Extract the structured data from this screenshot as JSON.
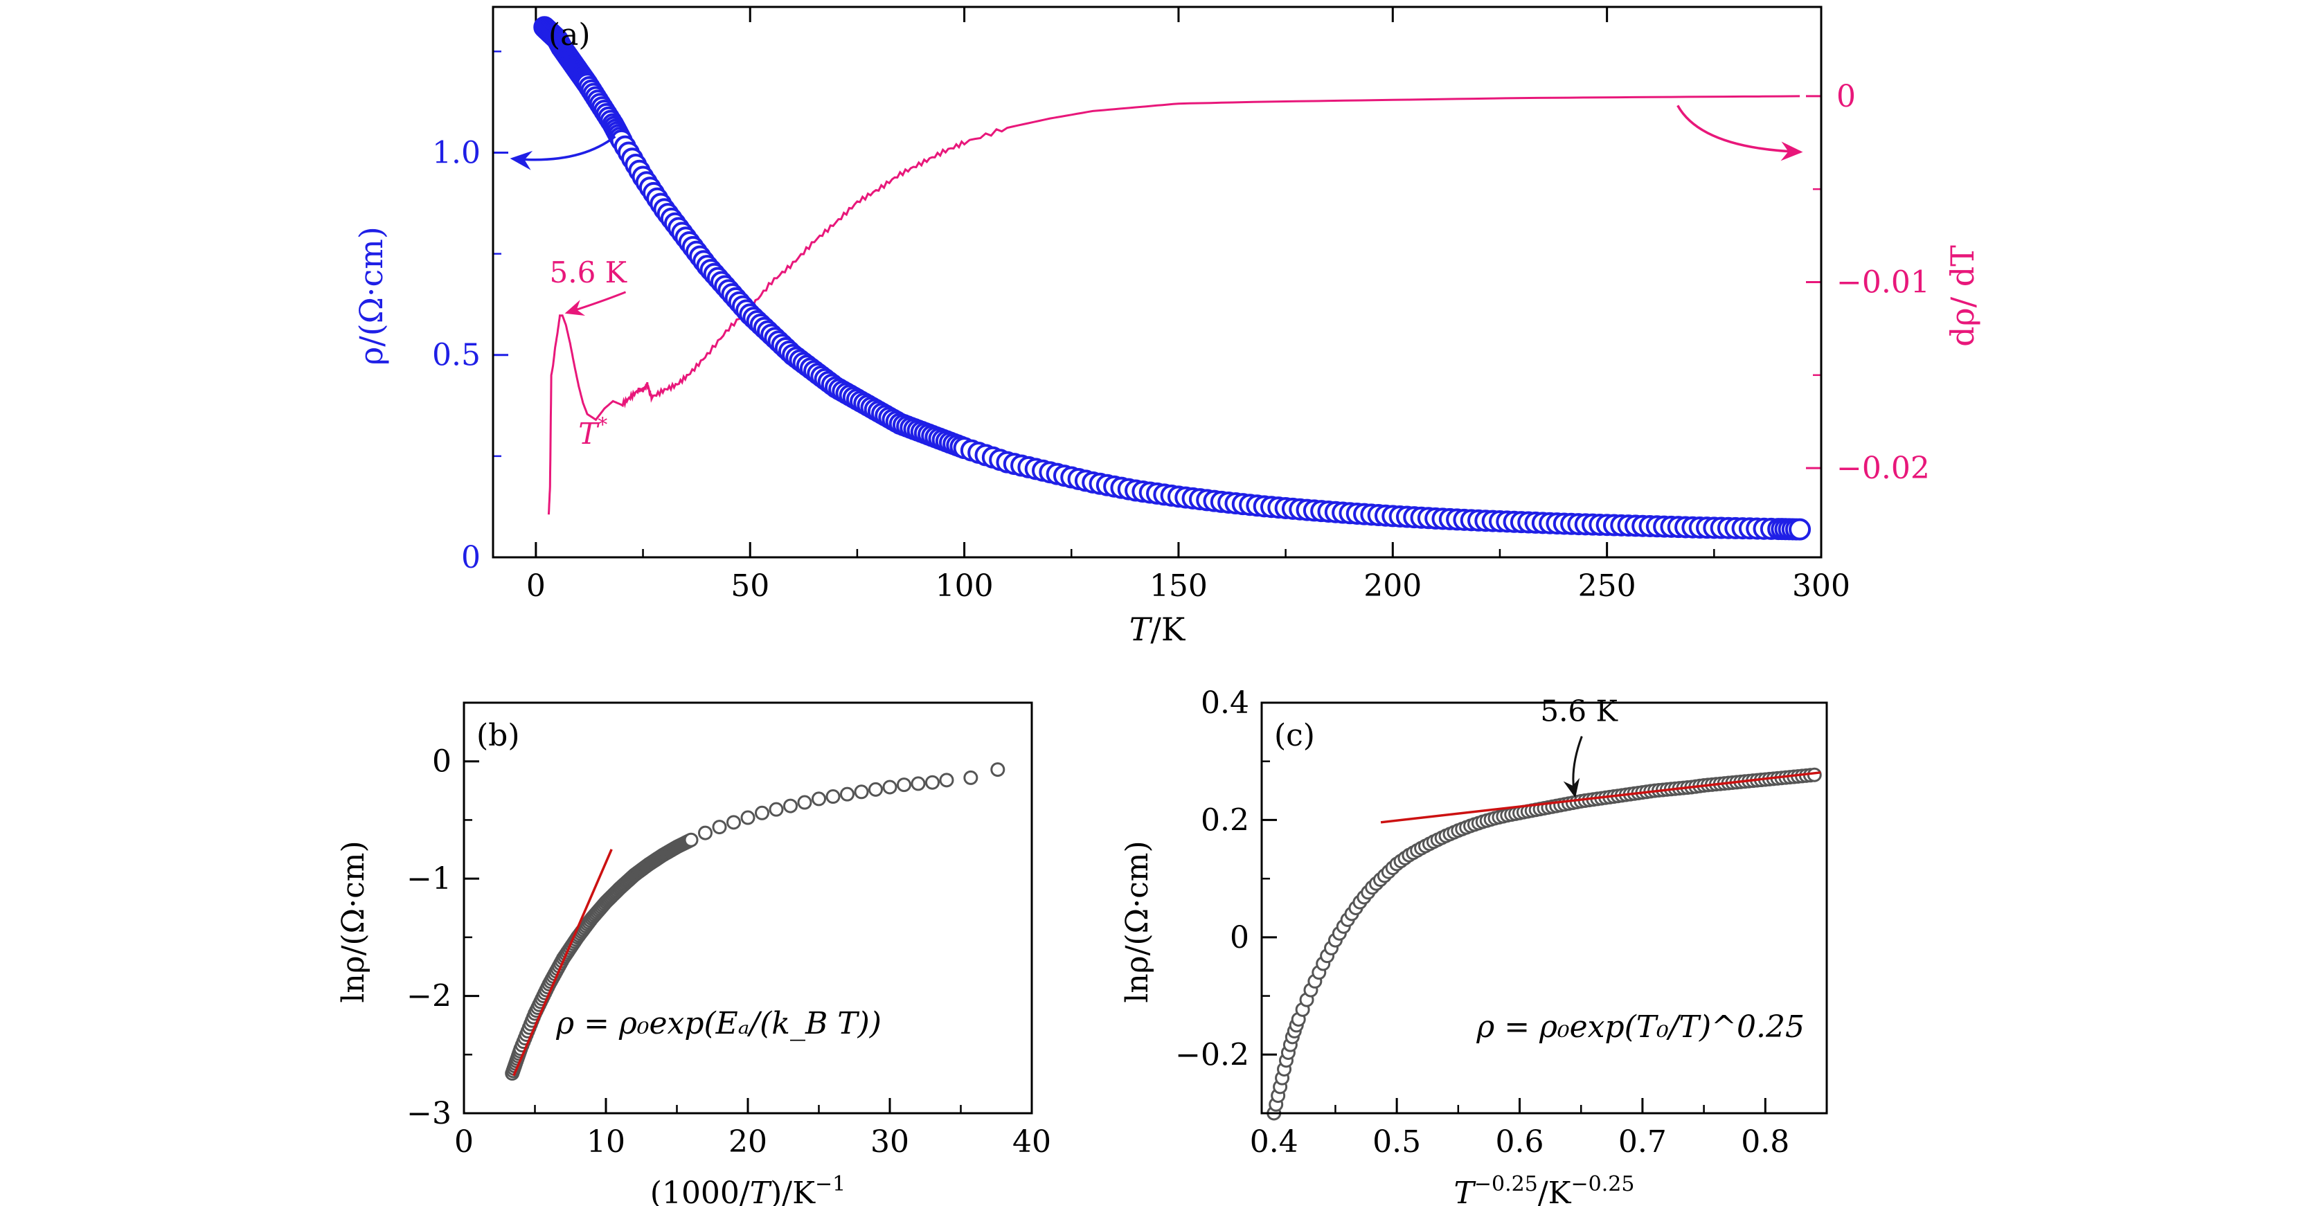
{
  "chart_data": [
    {
      "id": "a",
      "type": "scatter",
      "panel_label": "(a)",
      "xlabel_italic": "T",
      "xlabel_rest": "/K",
      "ylabel": "ρ/(Ω·cm)",
      "y2label": "dρ/ dT",
      "xlim": [
        -10,
        300
      ],
      "ylim": [
        0,
        1.36
      ],
      "y2lim": [
        -0.0248,
        0.0048
      ],
      "xticks": [
        0,
        50,
        100,
        150,
        200,
        250,
        300
      ],
      "yticks": [
        0,
        0.5,
        1.0
      ],
      "ytick_labels": [
        "0",
        "0.5",
        "1.0"
      ],
      "y2ticks": [
        0,
        -0.01,
        -0.02
      ],
      "y2tick_labels": [
        "0",
        "−0.01",
        "−0.02"
      ],
      "left_color": "#1f1fe6",
      "right_color": "#e8177a",
      "series": [
        {
          "name": "ρ (left axis)",
          "axis": "left",
          "marker": "open-circle",
          "color": "#1f1fe6",
          "x": [
            2,
            3,
            4,
            5,
            6,
            8,
            10,
            12,
            15,
            18,
            20,
            25,
            30,
            35,
            40,
            45,
            50,
            55,
            60,
            65,
            70,
            75,
            80,
            85,
            90,
            95,
            100,
            110,
            120,
            130,
            140,
            150,
            160,
            170,
            180,
            190,
            200,
            210,
            220,
            230,
            240,
            250,
            260,
            270,
            280,
            290,
            295
          ],
          "y": [
            1.31,
            1.3,
            1.29,
            1.28,
            1.26,
            1.23,
            1.2,
            1.17,
            1.12,
            1.07,
            1.03,
            0.94,
            0.86,
            0.79,
            0.72,
            0.66,
            0.6,
            0.55,
            0.5,
            0.46,
            0.42,
            0.39,
            0.36,
            0.33,
            0.31,
            0.29,
            0.27,
            0.235,
            0.21,
            0.185,
            0.165,
            0.15,
            0.137,
            0.126,
            0.117,
            0.109,
            0.102,
            0.096,
            0.091,
            0.087,
            0.083,
            0.08,
            0.077,
            0.074,
            0.072,
            0.07,
            0.069
          ]
        },
        {
          "name": "dρ/dT (right axis)",
          "axis": "right",
          "marker": "line",
          "color": "#e8177a",
          "x": [
            3,
            3.3,
            3.6,
            4,
            4.5,
            5,
            5.6,
            6.2,
            7,
            8,
            9,
            10,
            11,
            12,
            14,
            16,
            18,
            20,
            22,
            24,
            25,
            26,
            27,
            30,
            33,
            36,
            40,
            45,
            50,
            55,
            60,
            65,
            70,
            75,
            80,
            85,
            90,
            95,
            100,
            110,
            120,
            130,
            140,
            150,
            170,
            200,
            230,
            260,
            295
          ],
          "y": [
            -0.0225,
            -0.021,
            -0.015,
            -0.0145,
            -0.0135,
            -0.0128,
            -0.0118,
            -0.0118,
            -0.0123,
            -0.0133,
            -0.0145,
            -0.0156,
            -0.0165,
            -0.0171,
            -0.0174,
            -0.0168,
            -0.0164,
            -0.0166,
            -0.0162,
            -0.0158,
            -0.0158,
            -0.0155,
            -0.0162,
            -0.0158,
            -0.0155,
            -0.0149,
            -0.0139,
            -0.0125,
            -0.0114,
            -0.01,
            -0.009,
            -0.0078,
            -0.0068,
            -0.0057,
            -0.005,
            -0.0042,
            -0.0036,
            -0.003,
            -0.0025,
            -0.0017,
            -0.0012,
            -0.0008,
            -0.0006,
            -0.0004,
            -0.0003,
            -0.0002,
            -0.0001,
            -5e-05,
            0
          ]
        }
      ],
      "annotations": {
        "peak_label": "5.6 K",
        "peak_x": 5.6,
        "peak_y2": -0.0118,
        "tstar_main": "T",
        "tstar_sup": "*",
        "tstar_x": 18,
        "tstar_y2": -0.0166
      }
    },
    {
      "id": "b",
      "type": "scatter",
      "panel_label": "(b)",
      "xlabel_pre": "(1000/",
      "xlabel_italic": "T",
      "xlabel_post": ")/K",
      "xlabel_sup": "−1",
      "ylabel": "lnρ/(Ω·cm)",
      "xlim": [
        0,
        40
      ],
      "ylim": [
        -3,
        0.5
      ],
      "xticks": [
        0,
        10,
        20,
        30,
        40
      ],
      "yticks": [
        -3,
        -2,
        -1,
        0
      ],
      "ytick_labels": [
        "−3",
        "−2",
        "−1",
        "0"
      ],
      "formula": "ρ = ρ₀exp(Eₐ/(k_B T))",
      "series": [
        {
          "name": "ln ρ",
          "marker": "open-circle",
          "color": "#555555",
          "x": [
            3.4,
            4,
            5,
            6,
            7,
            8,
            9,
            10,
            11,
            12,
            13,
            14,
            15,
            16,
            17,
            18,
            19,
            20,
            21,
            22,
            23,
            24,
            25,
            26,
            27,
            28,
            29,
            30,
            31,
            32,
            33,
            34,
            35.7,
            37.6
          ],
          "y": [
            -2.66,
            -2.45,
            -2.15,
            -1.9,
            -1.68,
            -1.5,
            -1.34,
            -1.2,
            -1.08,
            -0.97,
            -0.88,
            -0.8,
            -0.73,
            -0.67,
            -0.61,
            -0.56,
            -0.52,
            -0.48,
            -0.44,
            -0.41,
            -0.38,
            -0.35,
            -0.32,
            -0.3,
            -0.28,
            -0.26,
            -0.24,
            -0.22,
            -0.2,
            -0.19,
            -0.18,
            -0.16,
            -0.14,
            -0.07
          ]
        },
        {
          "name": "Arrhenius fit",
          "marker": "line",
          "color": "#cc1111",
          "x": [
            3.5,
            10.4
          ],
          "y": [
            -2.68,
            -0.75
          ]
        }
      ]
    },
    {
      "id": "c",
      "type": "scatter",
      "panel_label": "(c)",
      "xlabel_italic": "T",
      "xlabel_sup1": "−0.25",
      "xlabel_rest": "/K",
      "xlabel_sup2": "−0.25",
      "ylabel": "lnρ/(Ω·cm)",
      "xlim": [
        0.39,
        0.85
      ],
      "ylim": [
        -0.3,
        0.4
      ],
      "xticks": [
        0.4,
        0.5,
        0.6,
        0.7,
        0.8
      ],
      "yticks": [
        -0.2,
        0,
        0.2,
        0.4
      ],
      "ytick_labels": [
        "−0.2",
        "0",
        "0.2",
        "0.4"
      ],
      "formula": "ρ = ρ₀exp(T₀/T)^0.25",
      "series": [
        {
          "name": "ln ρ",
          "marker": "open-circle",
          "color": "#555555",
          "x": [
            0.4,
            0.405,
            0.41,
            0.415,
            0.42,
            0.43,
            0.44,
            0.45,
            0.46,
            0.47,
            0.48,
            0.49,
            0.5,
            0.51,
            0.52,
            0.53,
            0.54,
            0.55,
            0.56,
            0.57,
            0.58,
            0.59,
            0.6,
            0.61,
            0.62,
            0.63,
            0.64,
            0.65,
            0.66,
            0.67,
            0.68,
            0.69,
            0.7,
            0.71,
            0.72,
            0.73,
            0.74,
            0.75,
            0.76,
            0.77,
            0.78,
            0.79,
            0.8,
            0.81,
            0.82,
            0.83,
            0.84
          ],
          "y": [
            -0.3,
            -0.255,
            -0.21,
            -0.17,
            -0.14,
            -0.09,
            -0.045,
            -0.005,
            0.03,
            0.06,
            0.085,
            0.105,
            0.125,
            0.14,
            0.152,
            0.163,
            0.173,
            0.182,
            0.19,
            0.197,
            0.203,
            0.208,
            0.212,
            0.216,
            0.22,
            0.224,
            0.228,
            0.232,
            0.235,
            0.238,
            0.241,
            0.244,
            0.247,
            0.25,
            0.252,
            0.254,
            0.256,
            0.259,
            0.261,
            0.263,
            0.265,
            0.267,
            0.269,
            0.271,
            0.273,
            0.275,
            0.277
          ]
        },
        {
          "name": "Mott VRH fit",
          "marker": "line",
          "color": "#cc1111",
          "x": [
            0.487,
            0.845
          ],
          "y": [
            0.196,
            0.281
          ]
        }
      ],
      "annotations": {
        "arrow_label": "5.6 K",
        "arrow_x": 0.645,
        "arrow_y": 0.227
      }
    }
  ]
}
